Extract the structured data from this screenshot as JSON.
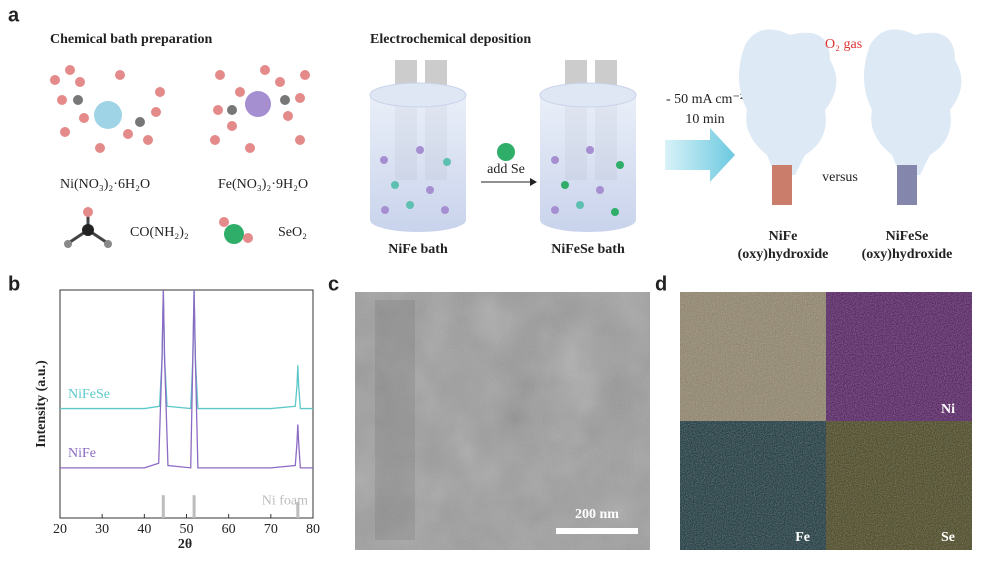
{
  "panel_a": {
    "label": "a",
    "bath_title": "Chemical bath preparation",
    "deposition_title": "Electrochemical deposition",
    "ni_salt": "Ni(NO₃)₂·6H₂O",
    "fe_salt": "Fe(NO₃)₂·9H₂O",
    "urea": "CO(NH₂)₂",
    "seo2": "SeO₂",
    "add_se": "add Se",
    "nife_bath": "NiFe bath",
    "nifese_bath": "NiFeSe bath",
    "current": "- 50 mA cm⁻²",
    "time": "10 min",
    "o2_gas": "O₂ gas",
    "versus": "versus",
    "product_1": [
      "NiFe",
      "(oxy)hydroxide"
    ],
    "product_2": [
      "NiFeSe",
      "(oxy)hydroxide"
    ]
  },
  "panel_b": {
    "label": "b",
    "chart_data": {
      "type": "line",
      "x_label": "2θ",
      "y_label": "Intensity (a.u.)",
      "xlim": [
        20,
        80
      ],
      "xticks": [
        20,
        30,
        40,
        50,
        60,
        70,
        80
      ],
      "ylim": [
        0,
        100
      ],
      "series": [
        {
          "name": "NiFeSe",
          "color": "#5ec8c8",
          "x": [
            20,
            30,
            40,
            43.6,
            44.2,
            44.5,
            44.8,
            45.4,
            51,
            51.5,
            51.8,
            52.1,
            52.7,
            60,
            70,
            75.8,
            76.2,
            76.4,
            76.6,
            77,
            80
          ],
          "values": [
            48,
            48,
            48,
            49,
            70,
            100,
            70,
            49,
            48,
            70,
            100,
            70,
            48,
            48,
            48,
            49,
            58,
            67,
            58,
            48,
            48
          ]
        },
        {
          "name": "NiFe",
          "color": "#8c6bc4",
          "x": [
            20,
            30,
            40,
            43.4,
            44.2,
            44.5,
            44.8,
            45.6,
            51,
            51.5,
            51.8,
            52.1,
            52.7,
            60,
            70,
            75.8,
            76.2,
            76.4,
            76.6,
            77,
            80
          ],
          "values": [
            22,
            22,
            22,
            24,
            70,
            100,
            70,
            23,
            22,
            70,
            100,
            70,
            22,
            22,
            22,
            23,
            33,
            41,
            33,
            22,
            22
          ]
        }
      ],
      "reference": {
        "name": "Ni foam",
        "color": "#bdbdbd",
        "x": [
          44.5,
          51.8,
          76.4
        ],
        "values": [
          10,
          10,
          7
        ]
      }
    }
  },
  "panel_c": {
    "label": "c",
    "scale_bar": "200 nm"
  },
  "panel_d": {
    "label": "d",
    "maps": [
      "Ni",
      "Fe",
      "Se"
    ]
  }
}
